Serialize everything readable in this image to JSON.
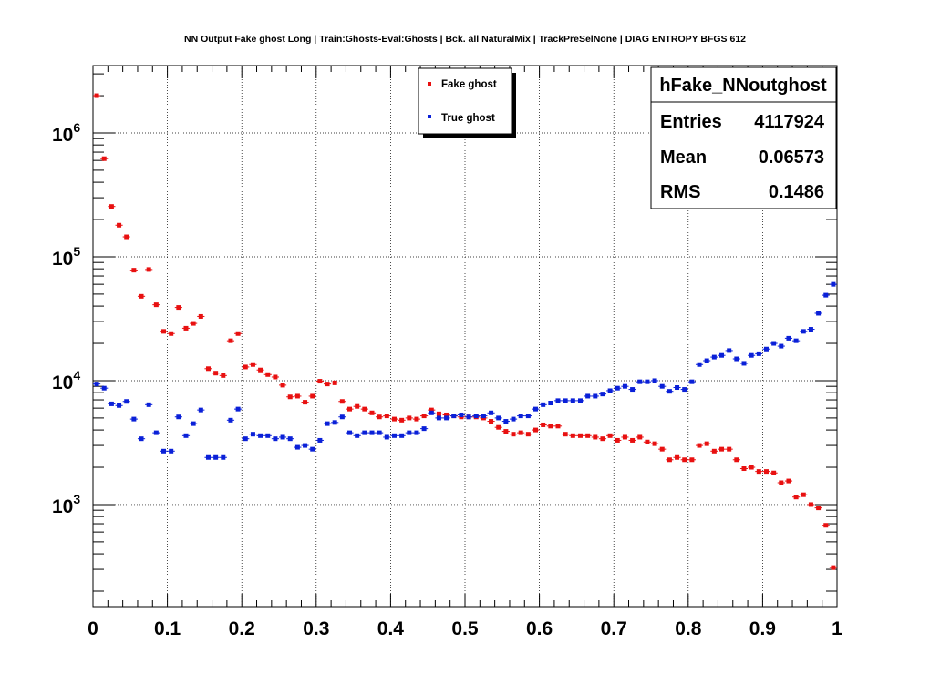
{
  "chart_data": {
    "type": "scatter",
    "title": "NN Output Fake ghost Long | Train:Ghosts-Eval:Ghosts | Bck. all NaturalMix | TrackPreSelNone | DIAG ENTROPY BFGS 612",
    "xlabel": "",
    "ylabel": "",
    "xlim": [
      0,
      1
    ],
    "ylim": [
      150,
      3500000
    ],
    "y_scale": "log",
    "grid": true,
    "x_ticks": [
      "0",
      "0.1",
      "0.2",
      "0.3",
      "0.4",
      "0.5",
      "0.6",
      "0.7",
      "0.8",
      "0.9",
      "1"
    ],
    "y_ticks": [
      {
        "base": "10",
        "exp": "3",
        "value": 1000
      },
      {
        "base": "10",
        "exp": "4",
        "value": 10000
      },
      {
        "base": "10",
        "exp": "5",
        "value": 100000
      },
      {
        "base": "10",
        "exp": "6",
        "value": 1000000
      }
    ],
    "legend_position": "top-center",
    "x": [
      0.005,
      0.015,
      0.025,
      0.035,
      0.045,
      0.055,
      0.065,
      0.075,
      0.085,
      0.095,
      0.105,
      0.115,
      0.125,
      0.135,
      0.145,
      0.155,
      0.165,
      0.175,
      0.185,
      0.195,
      0.205,
      0.215,
      0.225,
      0.235,
      0.245,
      0.255,
      0.265,
      0.275,
      0.285,
      0.295,
      0.305,
      0.315,
      0.325,
      0.335,
      0.345,
      0.355,
      0.365,
      0.375,
      0.385,
      0.395,
      0.405,
      0.415,
      0.425,
      0.435,
      0.445,
      0.455,
      0.465,
      0.475,
      0.485,
      0.495,
      0.505,
      0.515,
      0.525,
      0.535,
      0.545,
      0.555,
      0.565,
      0.575,
      0.585,
      0.595,
      0.605,
      0.615,
      0.625,
      0.635,
      0.645,
      0.655,
      0.665,
      0.675,
      0.685,
      0.695,
      0.705,
      0.715,
      0.725,
      0.735,
      0.745,
      0.755,
      0.765,
      0.775,
      0.785,
      0.795,
      0.805,
      0.815,
      0.825,
      0.835,
      0.845,
      0.855,
      0.865,
      0.875,
      0.885,
      0.895,
      0.905,
      0.915,
      0.925,
      0.935,
      0.945,
      0.955,
      0.965,
      0.975,
      0.985,
      0.995
    ],
    "series": [
      {
        "name": "Fake ghost",
        "color": "#e81010",
        "values": [
          2000000,
          620000,
          255000,
          180000,
          145000,
          78000,
          48000,
          79000,
          41000,
          25000,
          24000,
          39000,
          26500,
          29000,
          33000,
          12500,
          11500,
          11000,
          21000,
          24000,
          12900,
          13500,
          12200,
          11200,
          10700,
          9200,
          7400,
          7500,
          6700,
          7500,
          9900,
          9400,
          9600,
          6800,
          5900,
          6200,
          5900,
          5500,
          5100,
          5200,
          4900,
          4800,
          5000,
          4900,
          5200,
          5800,
          5400,
          5300,
          5200,
          5100,
          5100,
          5100,
          5000,
          4700,
          4200,
          3900,
          3700,
          3800,
          3700,
          4000,
          4400,
          4300,
          4300,
          3700,
          3600,
          3600,
          3600,
          3500,
          3400,
          3600,
          3300,
          3500,
          3300,
          3500,
          3200,
          3100,
          2800,
          2300,
          2400,
          2300,
          2300,
          3000,
          3100,
          2700,
          2800,
          2800,
          2300,
          1950,
          2000,
          1850,
          1850,
          1800,
          1500,
          1550,
          1150,
          1200,
          1000,
          940,
          680,
          310
        ]
      },
      {
        "name": "True ghost",
        "color": "#0a20d8",
        "values": [
          9400,
          8700,
          6500,
          6300,
          6800,
          4900,
          3400,
          6400,
          3800,
          2700,
          2700,
          5100,
          3600,
          4500,
          5800,
          2400,
          2400,
          2400,
          4800,
          5900,
          3400,
          3700,
          3600,
          3600,
          3400,
          3500,
          3400,
          2900,
          3000,
          2800,
          3300,
          4500,
          4600,
          5100,
          3800,
          3600,
          3800,
          3800,
          3800,
          3500,
          3600,
          3600,
          3800,
          3800,
          4100,
          5500,
          5000,
          5000,
          5200,
          5300,
          5100,
          5200,
          5200,
          5500,
          5000,
          4700,
          4900,
          5200,
          5200,
          5900,
          6400,
          6600,
          6900,
          6900,
          6900,
          6900,
          7500,
          7500,
          7800,
          8300,
          8700,
          9000,
          8500,
          9800,
          9800,
          10000,
          9000,
          8200,
          8800,
          8500,
          9800,
          13500,
          14500,
          15500,
          16000,
          17500,
          15000,
          13800,
          16000,
          16500,
          18000,
          20000,
          19000,
          22000,
          21000,
          25000,
          26000,
          35000,
          49000,
          60000
        ]
      }
    ]
  },
  "legend": {
    "items": [
      {
        "label": "Fake ghost",
        "color": "#e81010"
      },
      {
        "label": "True ghost",
        "color": "#0a20d8"
      }
    ]
  },
  "stats": {
    "title": "hFake_NNoutghost",
    "rows": [
      {
        "label": "Entries",
        "value": "4117924"
      },
      {
        "label": "Mean",
        "value": "0.06573"
      },
      {
        "label": "RMS",
        "value": "0.1486"
      }
    ]
  }
}
